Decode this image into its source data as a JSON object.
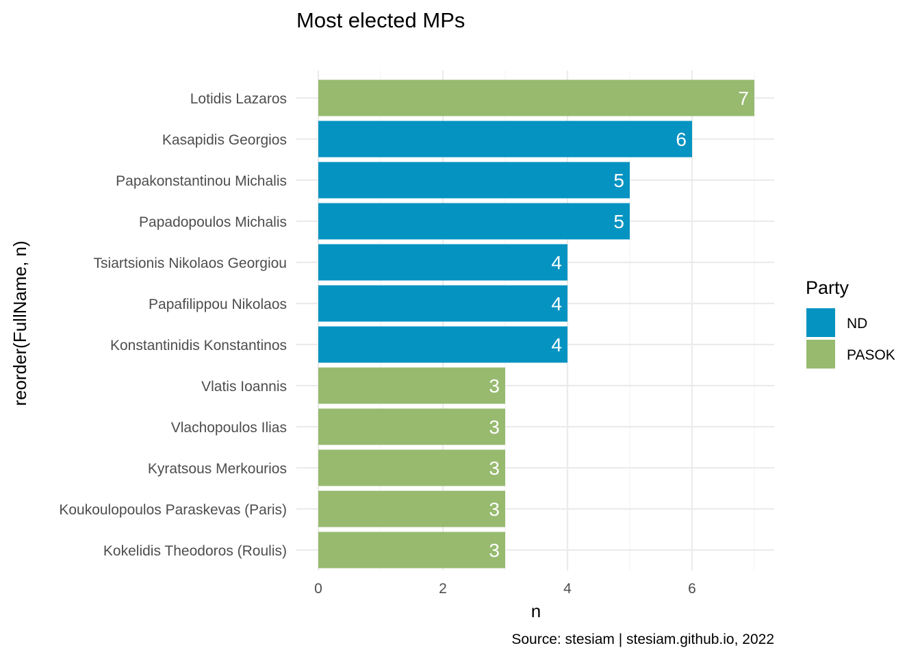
{
  "chart_data": {
    "type": "bar",
    "orientation": "horizontal",
    "title": "Most elected MPs",
    "xlabel": "n",
    "ylabel": "reorder(FullName, n)",
    "caption": "Source: stesiam | stesiam.github.io, 2022",
    "xlim": [
      0,
      7.35
    ],
    "xticks": [
      0,
      2,
      4,
      6
    ],
    "xtick_labels": [
      "0",
      "2",
      "4",
      "6"
    ],
    "grid": true,
    "legend": {
      "title": "Party",
      "placement": "right",
      "entries": [
        {
          "label": "ND",
          "color": "#0593C2"
        },
        {
          "label": "PASOK",
          "color": "#97BA6F"
        }
      ]
    },
    "bars": [
      {
        "category": "Lotidis Lazaros",
        "value": 7,
        "party": "PASOK",
        "label": "7"
      },
      {
        "category": "Kasapidis Georgios",
        "value": 6,
        "party": "ND",
        "label": "6"
      },
      {
        "category": "Papakonstantinou Michalis",
        "value": 5,
        "party": "ND",
        "label": "5"
      },
      {
        "category": "Papadopoulos Michalis",
        "value": 5,
        "party": "ND",
        "label": "5"
      },
      {
        "category": "Tsiartsionis Nikolaos Georgiou",
        "value": 4,
        "party": "ND",
        "label": "4"
      },
      {
        "category": "Papafilippou Nikolaos",
        "value": 4,
        "party": "ND",
        "label": "4"
      },
      {
        "category": "Konstantinidis Konstantinos",
        "value": 4,
        "party": "ND",
        "label": "4"
      },
      {
        "category": "Vlatis Ioannis",
        "value": 3,
        "party": "PASOK",
        "label": "3"
      },
      {
        "category": "Vlachopoulos Ilias",
        "value": 3,
        "party": "PASOK",
        "label": "3"
      },
      {
        "category": "Kyratsous Merkourios",
        "value": 3,
        "party": "PASOK",
        "label": "3"
      },
      {
        "category": "Koukoulopoulos Paraskevas (Paris)",
        "value": 3,
        "party": "PASOK",
        "label": "3"
      },
      {
        "category": "Kokelidis Theodoros (Roulis)",
        "value": 3,
        "party": "PASOK",
        "label": "3"
      }
    ]
  }
}
